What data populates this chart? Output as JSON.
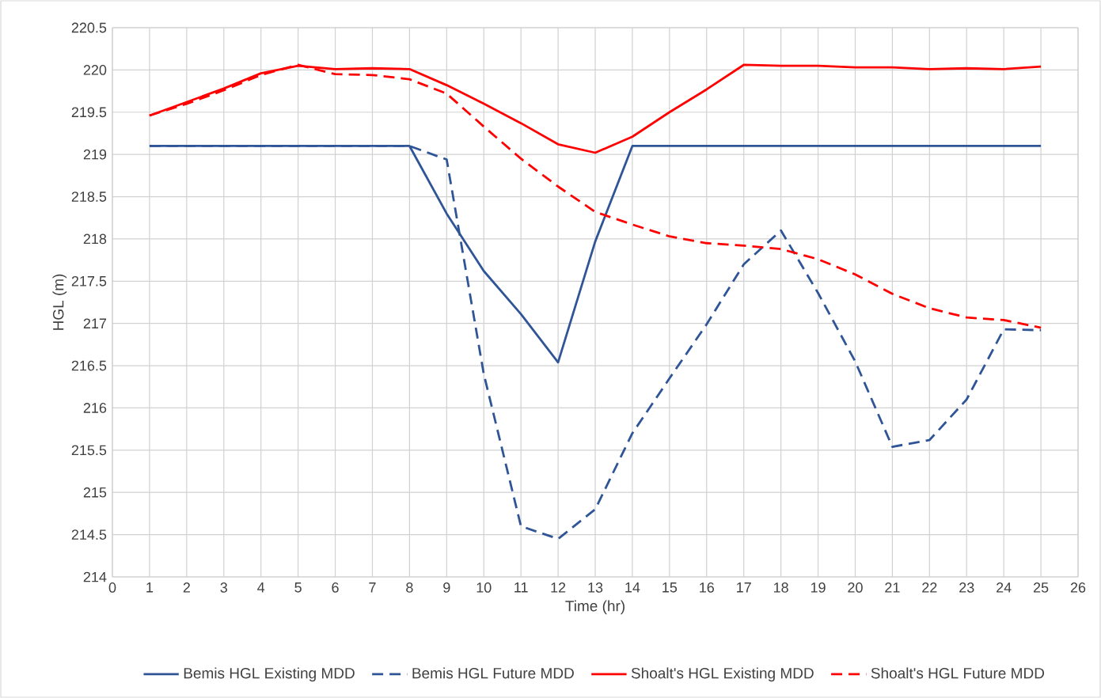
{
  "chart_data": {
    "type": "line",
    "xlabel": "Time (hr)",
    "ylabel": "HGL (m)",
    "x": [
      1,
      2,
      3,
      4,
      5,
      6,
      7,
      8,
      9,
      10,
      11,
      12,
      13,
      14,
      15,
      16,
      17,
      18,
      19,
      20,
      21,
      22,
      23,
      24,
      25
    ],
    "series": [
      {
        "name": "Bemis HGL Existing MDD",
        "color": "#2f5597",
        "line_style": "solid",
        "values": [
          219.1,
          219.1,
          219.1,
          219.1,
          219.1,
          219.1,
          219.1,
          219.1,
          218.3,
          217.62,
          217.11,
          216.54,
          217.97,
          219.1,
          219.1,
          219.1,
          219.1,
          219.1,
          219.1,
          219.1,
          219.1,
          219.1,
          219.1,
          219.1,
          219.1
        ]
      },
      {
        "name": "Bemis HGL Future MDD",
        "color": "#2f5597",
        "line_style": "dashed",
        "values": [
          219.1,
          219.1,
          219.1,
          219.1,
          219.1,
          219.1,
          219.1,
          219.1,
          218.94,
          216.4,
          214.6,
          214.45,
          214.8,
          215.7,
          216.35,
          216.99,
          217.7,
          218.1,
          217.36,
          216.55,
          215.54,
          215.62,
          216.1,
          216.93,
          216.92
        ]
      },
      {
        "name": "Shoalt's HGL Existing MDD",
        "color": "#ff0000",
        "line_style": "solid",
        "values": [
          219.46,
          219.62,
          219.78,
          219.96,
          220.05,
          220.01,
          220.02,
          220.01,
          219.82,
          219.6,
          219.37,
          219.12,
          219.02,
          219.21,
          219.5,
          219.77,
          220.06,
          220.05,
          220.05,
          220.03,
          220.03,
          220.01,
          220.02,
          220.01,
          220.04
        ]
      },
      {
        "name": "Shoalt's HGL Future MDD",
        "color": "#ff0000",
        "line_style": "dashed",
        "values": [
          219.46,
          219.6,
          219.76,
          219.94,
          220.06,
          219.95,
          219.94,
          219.89,
          219.72,
          219.33,
          218.95,
          218.62,
          218.32,
          218.17,
          218.03,
          217.95,
          217.92,
          217.88,
          217.76,
          217.58,
          217.35,
          217.18,
          217.07,
          217.04,
          216.95
        ]
      }
    ],
    "xlim": [
      0,
      26
    ],
    "xticks": [
      0,
      1,
      2,
      3,
      4,
      5,
      6,
      7,
      8,
      9,
      10,
      11,
      12,
      13,
      14,
      15,
      16,
      17,
      18,
      19,
      20,
      21,
      22,
      23,
      24,
      25,
      26
    ],
    "ylim": [
      214,
      220.5
    ],
    "yticks": [
      214,
      214.5,
      215,
      215.5,
      216,
      216.5,
      217,
      217.5,
      218,
      218.5,
      219,
      219.5,
      220,
      220.5
    ],
    "grid": true,
    "legend": "bottom",
    "marker": "none"
  }
}
